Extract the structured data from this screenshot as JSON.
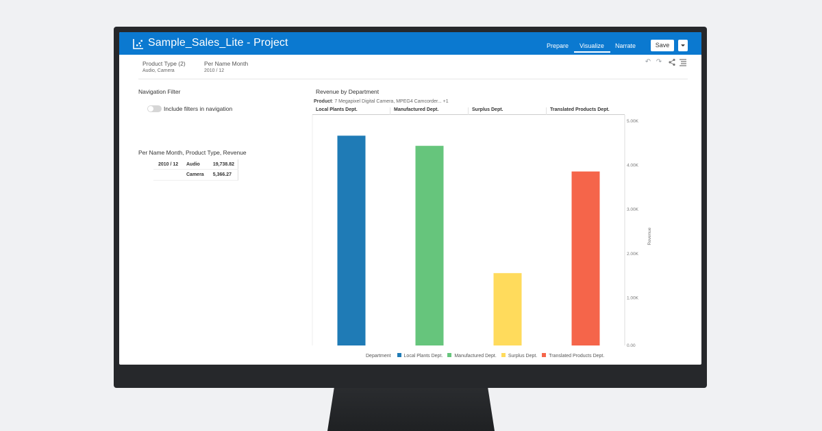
{
  "header": {
    "title": "Sample_Sales_Lite - Project",
    "tabs": [
      {
        "label": "Prepare",
        "active": false
      },
      {
        "label": "Visualize",
        "active": true
      },
      {
        "label": "Narrate",
        "active": false
      }
    ],
    "save_label": "Save",
    "background_color": "#0b79d0"
  },
  "filters": [
    {
      "label": "Product Type (2)",
      "value": "Audio, Camera"
    },
    {
      "label": "Per Name Month",
      "value": "2010 / 12"
    }
  ],
  "toolbar_icons": [
    "undo-icon",
    "redo-icon",
    "share-icon",
    "menu-icon"
  ],
  "nav_filter": {
    "title": "Navigation Filter",
    "toggle_label": "Include filters in navigation",
    "toggle_on": false
  },
  "pivot": {
    "title": "Per Name Month, Product Type, Revenue",
    "month": "2010 / 12",
    "rows": [
      {
        "type": "Audio",
        "revenue": "19,738.82"
      },
      {
        "type": "Camera",
        "revenue": "5,366.27"
      }
    ]
  },
  "chart_data": {
    "type": "bar",
    "title": "Revenue by Department",
    "filter_label": "Product",
    "filter_value": ": 7 Megapixel Digital Camera, MPEG4 Camcorder... +1",
    "categories": [
      "Local Plants Dept.",
      "Manufactured Dept.",
      "Surplus Dept.",
      "Translated Products Dept."
    ],
    "values": [
      4670,
      4440,
      1560,
      3860
    ],
    "colors": [
      "#1f7bb6",
      "#66c57c",
      "#ffdb5c",
      "#f5654a"
    ],
    "ylabel": "Revenue",
    "ylim": [
      0,
      5000
    ],
    "yticks": [
      "0.00",
      "1.00K",
      "2.00K",
      "3.00K",
      "4.00K",
      "5.00K"
    ],
    "legend_title": "Department",
    "legend_position": "bottom",
    "y_axis_position": "right",
    "grid": false
  }
}
